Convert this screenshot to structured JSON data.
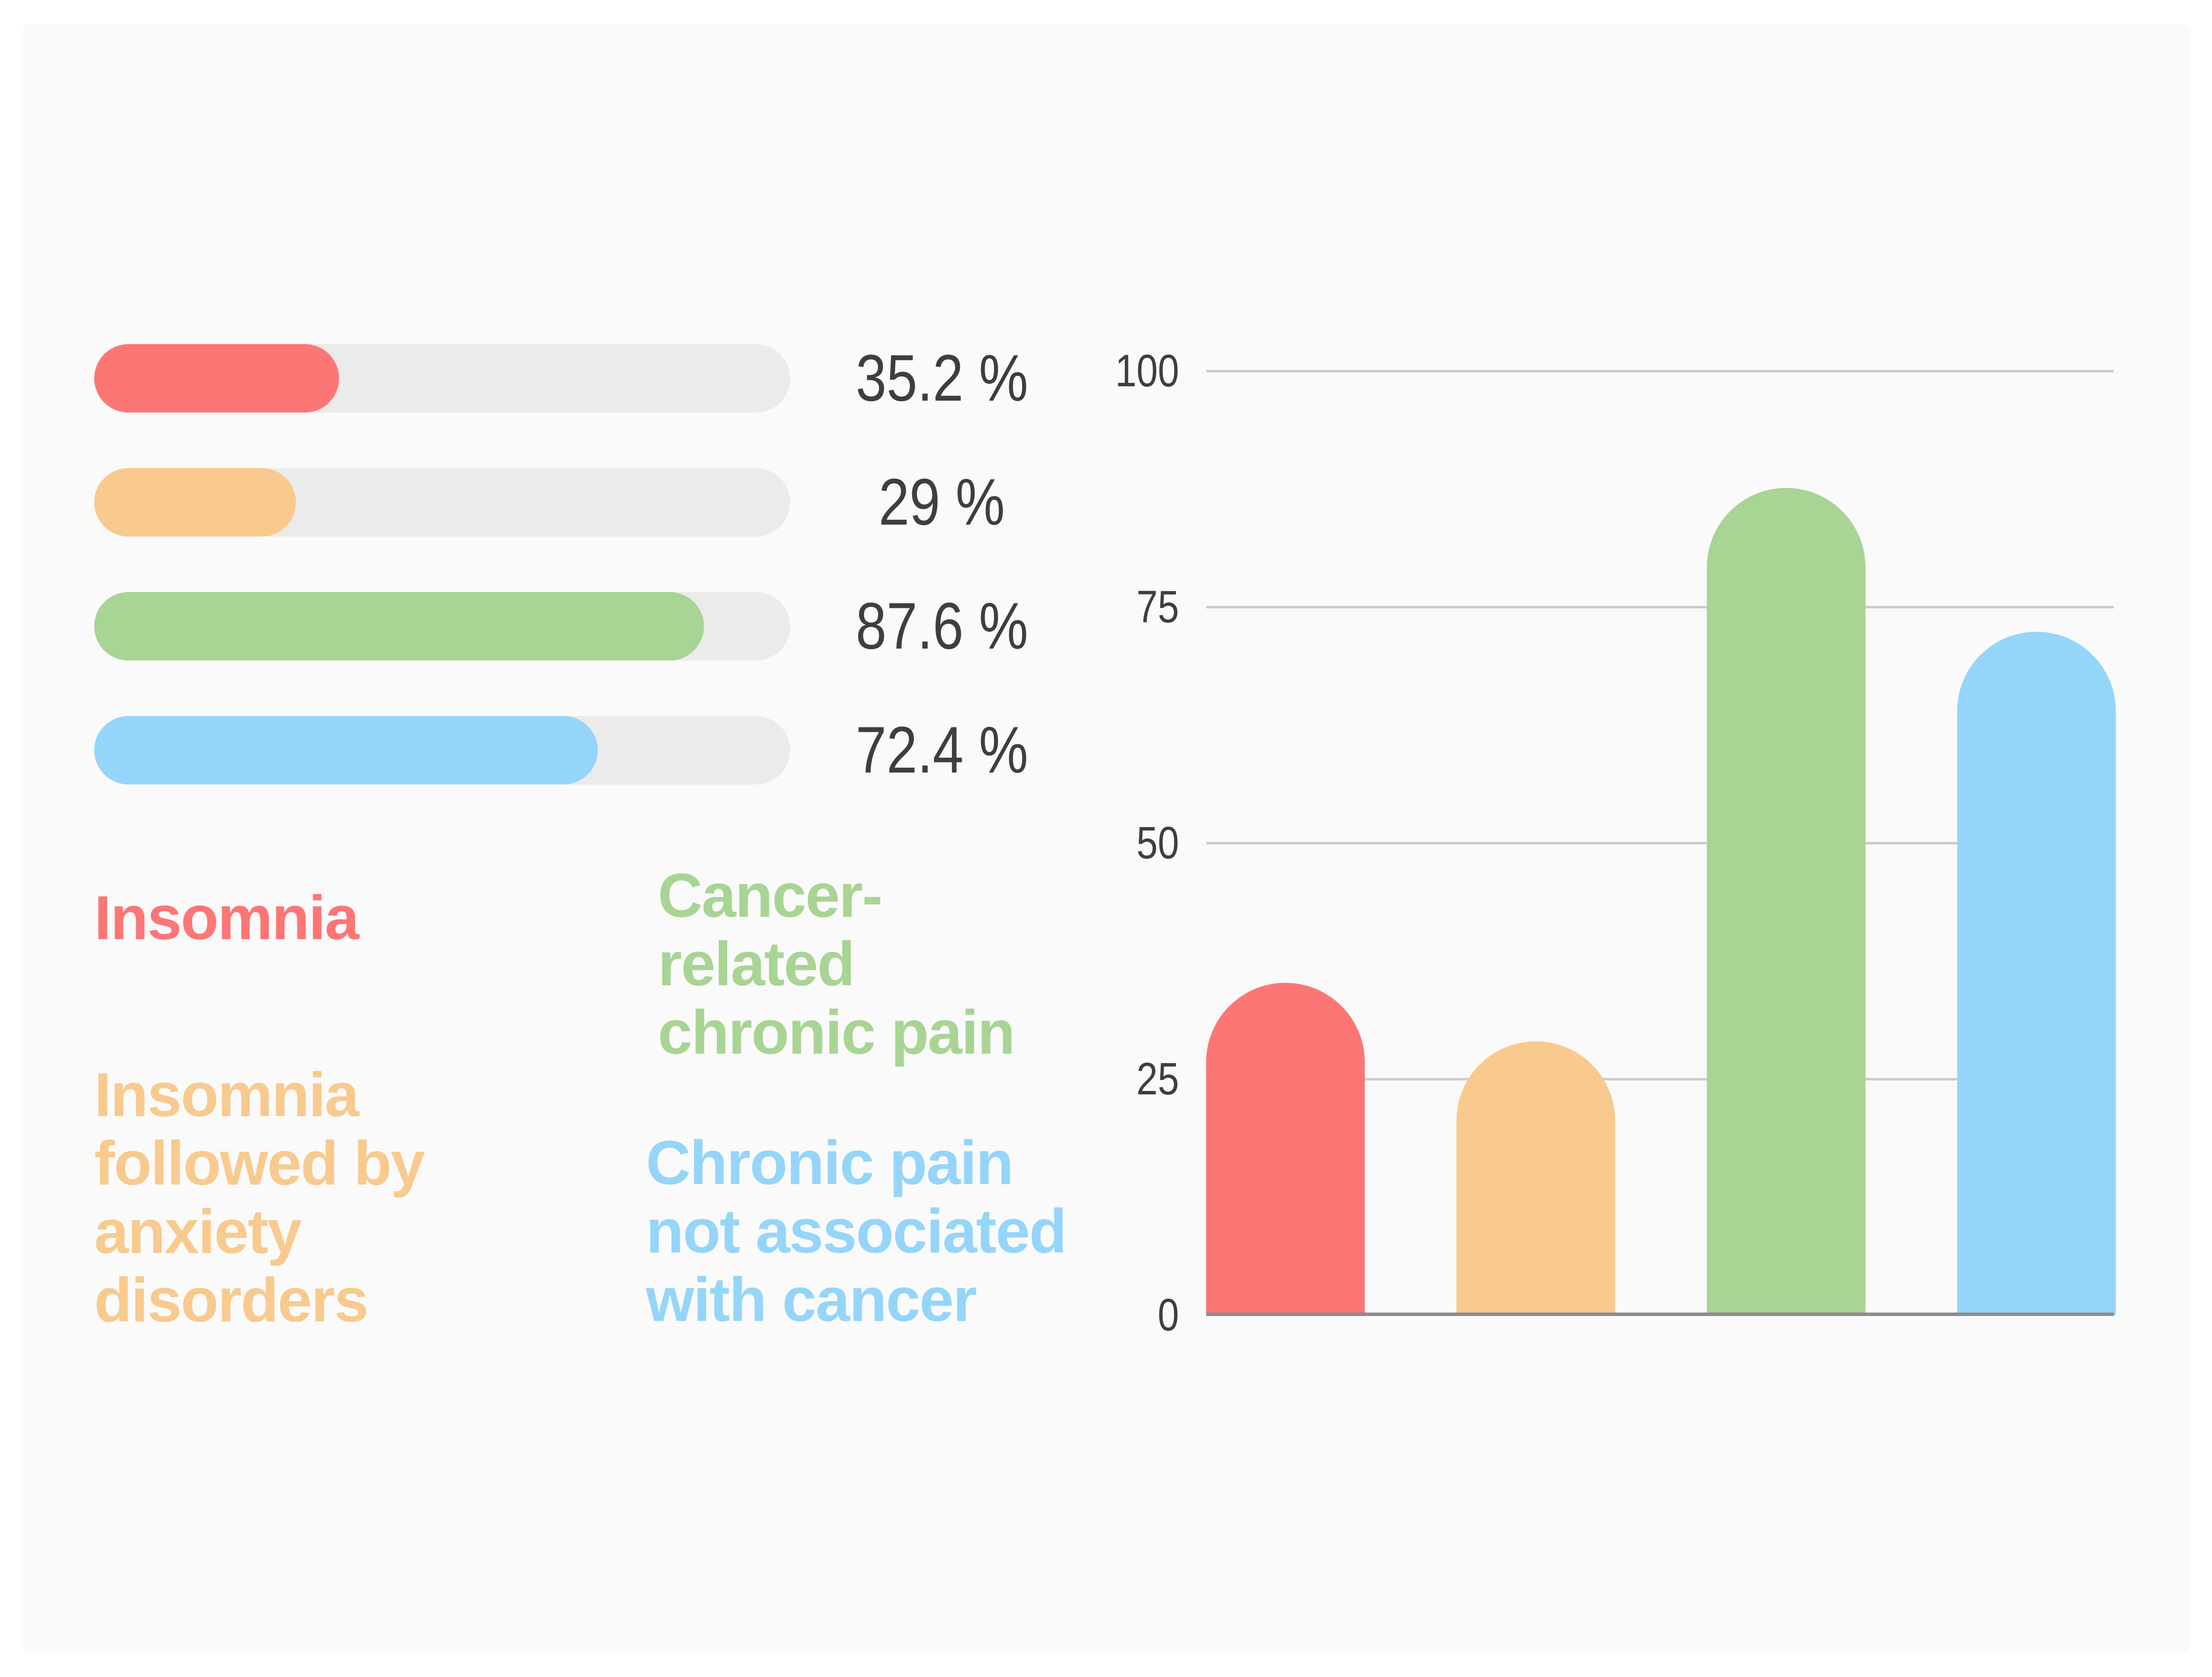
{
  "colors": {
    "red": "#fd7676",
    "orange": "#f8ca8e",
    "green": "#a8d494",
    "blue": "#95d5fa",
    "track": "#ebebeb",
    "panel_bg": "#fafafa",
    "gridline": "#cccccc",
    "baseline": "#8d8d8d",
    "number_text": "#3e3e3e"
  },
  "progress": {
    "items": [
      {
        "name": "Insomnia",
        "color": "red",
        "value": 35.2,
        "display": "35.2 %"
      },
      {
        "name": "Insomnia followed by anxiety disorders",
        "color": "orange",
        "value": 29,
        "display": "29 %"
      },
      {
        "name": "Cancer-related chronic pain",
        "color": "green",
        "value": 87.6,
        "display": "87.6 %"
      },
      {
        "name": "Chronic pain not associated with cancer",
        "color": "blue",
        "value": 72.4,
        "display": "72.4 %"
      }
    ]
  },
  "legend": {
    "items": [
      {
        "text": "Insomnia",
        "color": "red"
      },
      {
        "text": "Insomnia\nfollowed by\nanxiety\ndisorders",
        "color": "orange"
      },
      {
        "text": "Cancer-\nrelated\nchronic pain",
        "color": "green"
      },
      {
        "text": "Chronic pain\nnot associated\nwith cancer",
        "color": "blue"
      }
    ]
  },
  "chart_data": {
    "type": "bar",
    "categories": [
      "Insomnia",
      "Insomnia followed by anxiety disorders",
      "Cancer-related chronic pain",
      "Chronic pain not associated with cancer"
    ],
    "values": [
      35.2,
      29,
      87.6,
      72.4
    ],
    "bar_colors": [
      "red",
      "orange",
      "green",
      "blue"
    ],
    "title": "",
    "xlabel": "",
    "ylabel": "",
    "ylim": [
      0,
      100
    ],
    "yticks": [
      0,
      25,
      50,
      75,
      100
    ],
    "ytick_labels": [
      "0",
      "25",
      "50",
      "75",
      "100"
    ],
    "grid": "horizontal",
    "legend_position": "left"
  }
}
